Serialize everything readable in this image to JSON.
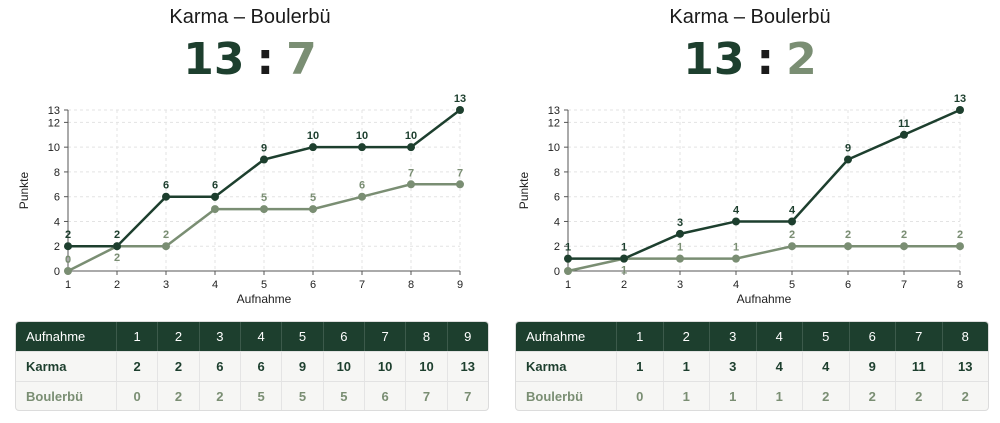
{
  "colors": {
    "home": "#1d3f2e",
    "away": "#7a8e73",
    "grid": "#e3e3e3",
    "axis": "#555555"
  },
  "chart_data": [
    {
      "type": "line",
      "title": "Karma – Boulerbü",
      "score": {
        "home": "13",
        "separator": ":",
        "away": "7"
      },
      "xlabel": "Aufnahme",
      "ylabel": "Punkte",
      "x": [
        1,
        2,
        3,
        4,
        5,
        6,
        7,
        8,
        9
      ],
      "ylim": [
        0,
        13
      ],
      "yticks": [
        0,
        2,
        4,
        6,
        8,
        10,
        12,
        13
      ],
      "grid": true,
      "series": [
        {
          "name": "Karma",
          "values": [
            2,
            2,
            6,
            6,
            9,
            10,
            10,
            10,
            13
          ]
        },
        {
          "name": "Boulerbü",
          "values": [
            0,
            2,
            2,
            5,
            5,
            5,
            6,
            7,
            7
          ]
        }
      ],
      "table": {
        "header": "Aufnahme"
      }
    },
    {
      "type": "line",
      "title": "Karma – Boulerbü",
      "score": {
        "home": "13",
        "separator": ":",
        "away": "2"
      },
      "xlabel": "Aufnahme",
      "ylabel": "Punkte",
      "x": [
        1,
        2,
        3,
        4,
        5,
        6,
        7,
        8
      ],
      "ylim": [
        0,
        13
      ],
      "yticks": [
        0,
        2,
        4,
        6,
        8,
        10,
        12,
        13
      ],
      "grid": true,
      "series": [
        {
          "name": "Karma",
          "values": [
            1,
            1,
            3,
            4,
            4,
            9,
            11,
            13
          ]
        },
        {
          "name": "Boulerbü",
          "values": [
            0,
            1,
            1,
            1,
            2,
            2,
            2,
            2
          ]
        }
      ],
      "table": {
        "header": "Aufnahme"
      }
    }
  ]
}
